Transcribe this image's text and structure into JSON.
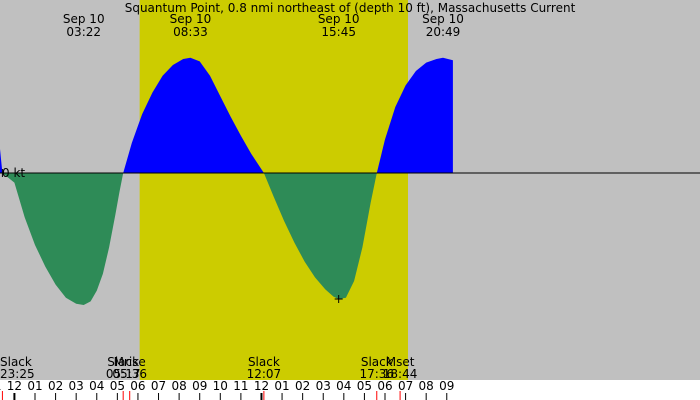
{
  "chart_data": {
    "type": "area",
    "title": "Squantum Point, 0.8 nmi northeast of (depth 10 ft), Massachusetts Current",
    "colors": {
      "night": "#c0c0c0",
      "day": "#cccc00",
      "flood": "#0000ff",
      "ebb": "#2e8b57",
      "tick_minor": "#ff0000",
      "tick_major": "#000000"
    },
    "x_range_hours": [
      -0.7,
      33.3
    ],
    "daylight": {
      "start": 6.083,
      "end": 19.117
    },
    "zero_label": "0 kt",
    "top_labels": [
      {
        "hour": 3.367,
        "date": "Sep 10",
        "time": "03:22"
      },
      {
        "hour": 8.55,
        "date": "Sep 10",
        "time": "08:33"
      },
      {
        "hour": 15.75,
        "date": "Sep 10",
        "time": "15:45"
      },
      {
        "hour": 20.817,
        "date": "Sep 10",
        "time": "20:49"
      }
    ],
    "bottom_events": [
      {
        "hour": -0.583,
        "name": "Slack",
        "time": "23:25",
        "align": "start"
      },
      {
        "hour": 5.283,
        "name": "Slack",
        "time": "05:17",
        "align": "middle"
      },
      {
        "hour": 5.6,
        "name": "Mrise",
        "time": "05:36",
        "align": "middle"
      },
      {
        "hour": 12.117,
        "name": "Slack",
        "time": "12:07",
        "align": "middle"
      },
      {
        "hour": 17.6,
        "name": "Slack",
        "time": "17:36",
        "align": "middle"
      },
      {
        "hour": 18.733,
        "name": "Mset",
        "time": "18:44",
        "align": "middle"
      }
    ],
    "hour_ticks": [
      {
        "hour": -1,
        "label": "11"
      },
      {
        "hour": 0,
        "label": "12"
      },
      {
        "hour": 1,
        "label": "01"
      },
      {
        "hour": 2,
        "label": "02"
      },
      {
        "hour": 3,
        "label": "03"
      },
      {
        "hour": 4,
        "label": "04"
      },
      {
        "hour": 5,
        "label": "05"
      },
      {
        "hour": 6,
        "label": "06"
      },
      {
        "hour": 7,
        "label": "07"
      },
      {
        "hour": 8,
        "label": "08"
      },
      {
        "hour": 9,
        "label": "09"
      },
      {
        "hour": 10,
        "label": "10"
      },
      {
        "hour": 11,
        "label": "11"
      },
      {
        "hour": 12,
        "label": "12"
      },
      {
        "hour": 13,
        "label": "01"
      },
      {
        "hour": 14,
        "label": "02"
      },
      {
        "hour": 15,
        "label": "03"
      },
      {
        "hour": 16,
        "label": "04"
      },
      {
        "hour": 17,
        "label": "05"
      },
      {
        "hour": 18,
        "label": "06"
      },
      {
        "hour": 19,
        "label": "07"
      },
      {
        "hour": 20,
        "label": "08"
      },
      {
        "hour": 21,
        "label": "09"
      }
    ],
    "current_kt": [
      {
        "hour": -0.7,
        "kt": 0.2
      },
      {
        "hour": -0.583,
        "kt": 0.0
      },
      {
        "hour": 0.0,
        "kt": -0.08
      },
      {
        "hour": 0.5,
        "kt": -0.37
      },
      {
        "hour": 1.0,
        "kt": -0.6
      },
      {
        "hour": 1.5,
        "kt": -0.78
      },
      {
        "hour": 2.0,
        "kt": -0.93
      },
      {
        "hour": 2.5,
        "kt": -1.04
      },
      {
        "hour": 3.0,
        "kt": -1.09
      },
      {
        "hour": 3.367,
        "kt": -1.1
      },
      {
        "hour": 3.7,
        "kt": -1.07
      },
      {
        "hour": 4.0,
        "kt": -0.98
      },
      {
        "hour": 4.3,
        "kt": -0.84
      },
      {
        "hour": 4.6,
        "kt": -0.62
      },
      {
        "hour": 4.9,
        "kt": -0.35
      },
      {
        "hour": 5.1,
        "kt": -0.16
      },
      {
        "hour": 5.283,
        "kt": 0.0
      },
      {
        "hour": 5.7,
        "kt": 0.25
      },
      {
        "hour": 6.2,
        "kt": 0.49
      },
      {
        "hour": 6.7,
        "kt": 0.67
      },
      {
        "hour": 7.2,
        "kt": 0.81
      },
      {
        "hour": 7.7,
        "kt": 0.9
      },
      {
        "hour": 8.2,
        "kt": 0.95
      },
      {
        "hour": 8.55,
        "kt": 0.96
      },
      {
        "hour": 9.0,
        "kt": 0.93
      },
      {
        "hour": 9.5,
        "kt": 0.81
      },
      {
        "hour": 10.0,
        "kt": 0.64
      },
      {
        "hour": 10.5,
        "kt": 0.47
      },
      {
        "hour": 11.0,
        "kt": 0.31
      },
      {
        "hour": 11.5,
        "kt": 0.16
      },
      {
        "hour": 12.117,
        "kt": 0.0
      },
      {
        "hour": 12.6,
        "kt": -0.2
      },
      {
        "hour": 13.1,
        "kt": -0.4
      },
      {
        "hour": 13.6,
        "kt": -0.58
      },
      {
        "hour": 14.1,
        "kt": -0.74
      },
      {
        "hour": 14.6,
        "kt": -0.87
      },
      {
        "hour": 15.1,
        "kt": -0.97
      },
      {
        "hour": 15.5,
        "kt": -1.03
      },
      {
        "hour": 15.75,
        "kt": -1.05
      },
      {
        "hour": 16.1,
        "kt": -1.04
      },
      {
        "hour": 16.5,
        "kt": -0.9
      },
      {
        "hour": 16.9,
        "kt": -0.62
      },
      {
        "hour": 17.3,
        "kt": -0.25
      },
      {
        "hour": 17.6,
        "kt": 0.0
      },
      {
        "hour": 18.0,
        "kt": 0.28
      },
      {
        "hour": 18.5,
        "kt": 0.55
      },
      {
        "hour": 19.0,
        "kt": 0.73
      },
      {
        "hour": 19.5,
        "kt": 0.85
      },
      {
        "hour": 20.0,
        "kt": 0.92
      },
      {
        "hour": 20.5,
        "kt": 0.95
      },
      {
        "hour": 20.817,
        "kt": 0.96
      },
      {
        "hour": 21.3,
        "kt": 0.94
      }
    ],
    "markers": [
      {
        "hour": -0.583,
        "kt": 0.0
      },
      {
        "hour": 15.75,
        "kt": -1.05
      }
    ]
  }
}
